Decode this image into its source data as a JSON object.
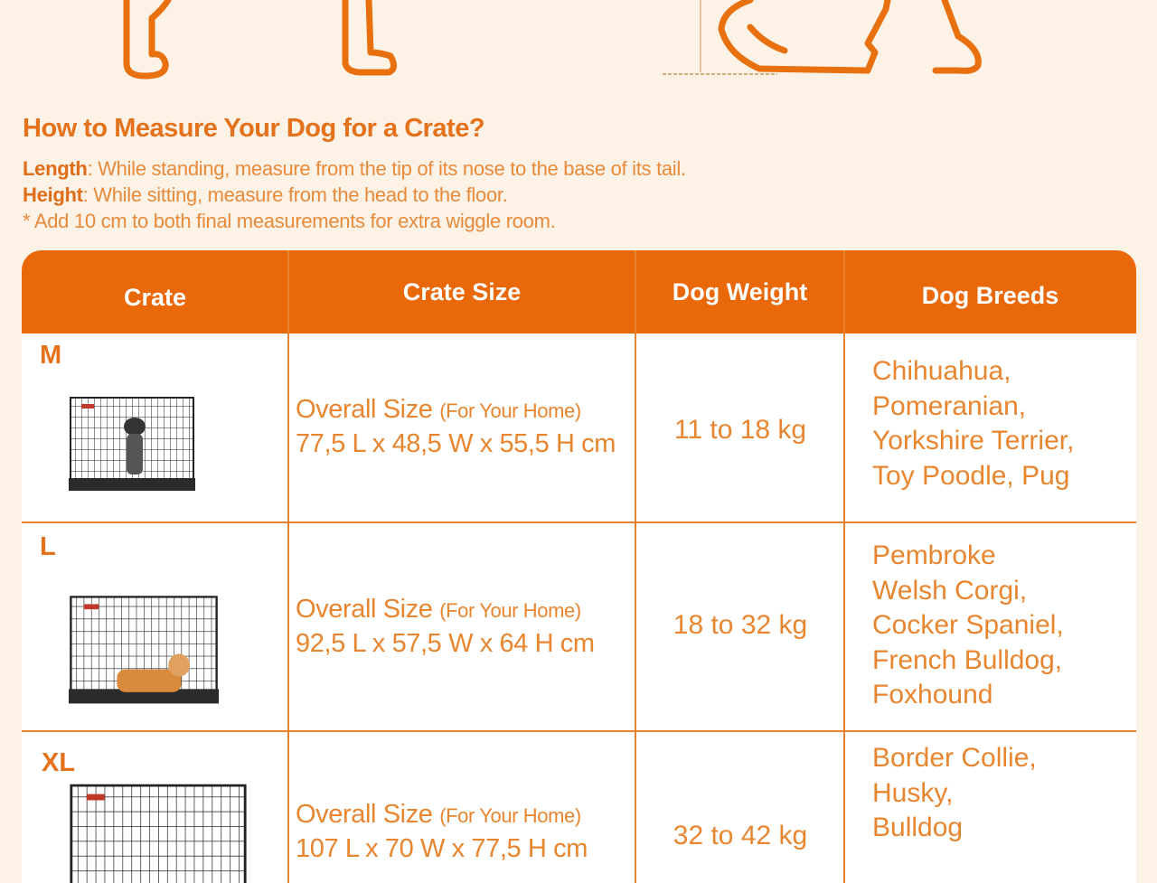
{
  "heading": "How to Measure Your Dog for a Crate?",
  "notes": {
    "length_label": "Length",
    "length_text": ": While standing, measure from the tip of its nose to the base of its tail.",
    "height_label": "Height",
    "height_text": ": While sitting, measure from the head to the floor.",
    "tip": "* Add 10 cm to both final measurements for extra wiggle room."
  },
  "table": {
    "headers": [
      "Crate",
      "Crate Size",
      "Dog Weight",
      "Dog Breeds"
    ],
    "rows": [
      {
        "size": "M",
        "overall": "Overall Size",
        "for_home": "(For Your Home)",
        "dims": "77,5 L x 48,5 W x 55,5 H cm",
        "weight": "11 to 18 kg",
        "breeds": [
          "Chihuahua,",
          "Pomeranian,",
          "Yorkshire Terrier,",
          "Toy Poodle, Pug"
        ]
      },
      {
        "size": "L",
        "overall": "Overall Size",
        "for_home": "(For Your Home)",
        "dims": "92,5 L x 57,5 W x 64 H cm",
        "weight": "18 to 32 kg",
        "breeds": [
          "Pembroke",
          "Welsh Corgi,",
          "Cocker Spaniel,",
          "French Bulldog,",
          "Foxhound"
        ]
      },
      {
        "size": "XL",
        "overall": "Overall Size",
        "for_home": "(For Your Home)",
        "dims": "107 L x 70 W x 77,5 H cm",
        "weight": "32 to 42 kg",
        "breeds": [
          "Border Collie,",
          "Husky,",
          "Bulldog"
        ]
      }
    ]
  },
  "colors": {
    "accent": "#e8680a",
    "text": "#e8852f",
    "background": "#fdf2e6"
  }
}
